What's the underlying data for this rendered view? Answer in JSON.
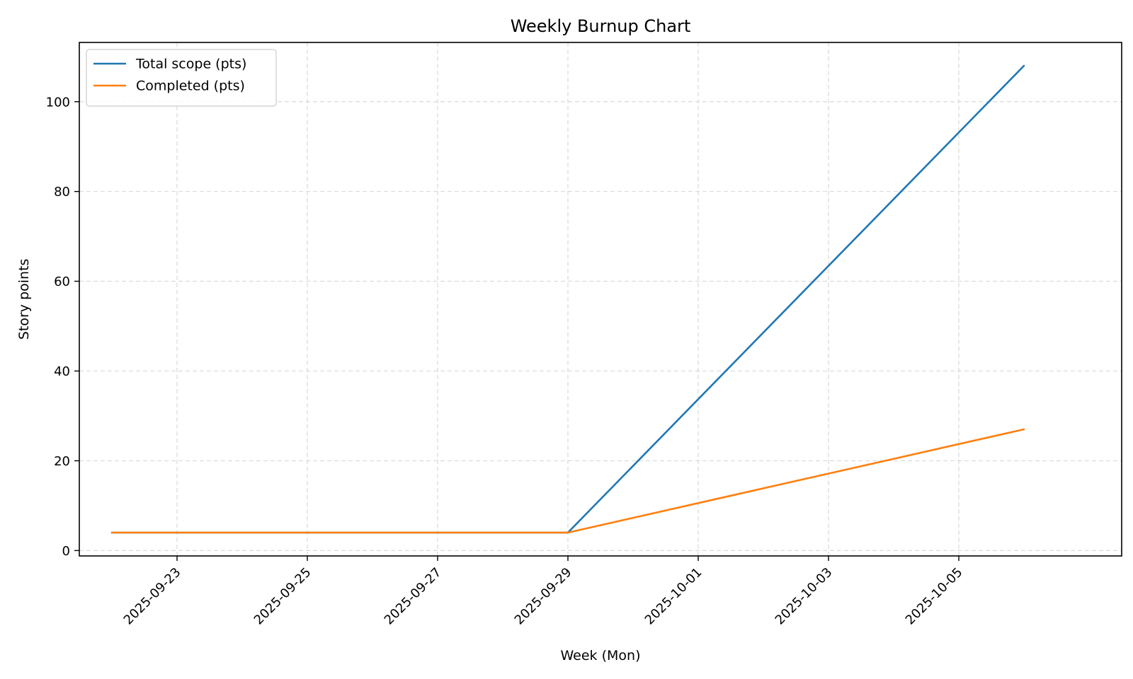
{
  "chart_data": {
    "type": "line",
    "title": "Weekly Burnup Chart",
    "xlabel": "Week (Mon)",
    "ylabel": "Story points",
    "x": [
      "2025-09-22",
      "2025-09-29",
      "2025-10-06"
    ],
    "series": [
      {
        "name": "Total scope (pts)",
        "values": [
          4,
          4,
          108
        ],
        "color": "#1f77b4"
      },
      {
        "name": "Completed (pts)",
        "values": [
          4,
          4,
          27
        ],
        "color": "#ff7f0e"
      }
    ],
    "xlim": [
      "2025-09-21T12:00",
      "2025-10-07T12:00"
    ],
    "ylim": [
      -1.2,
      113.2
    ],
    "x_ticks": [
      "2025-09-23",
      "2025-09-25",
      "2025-09-27",
      "2025-09-29",
      "2025-10-01",
      "2025-10-03",
      "2025-10-05"
    ],
    "y_ticks": [
      0,
      20,
      40,
      60,
      80,
      100
    ],
    "grid": true,
    "legend_position": "top-left"
  }
}
